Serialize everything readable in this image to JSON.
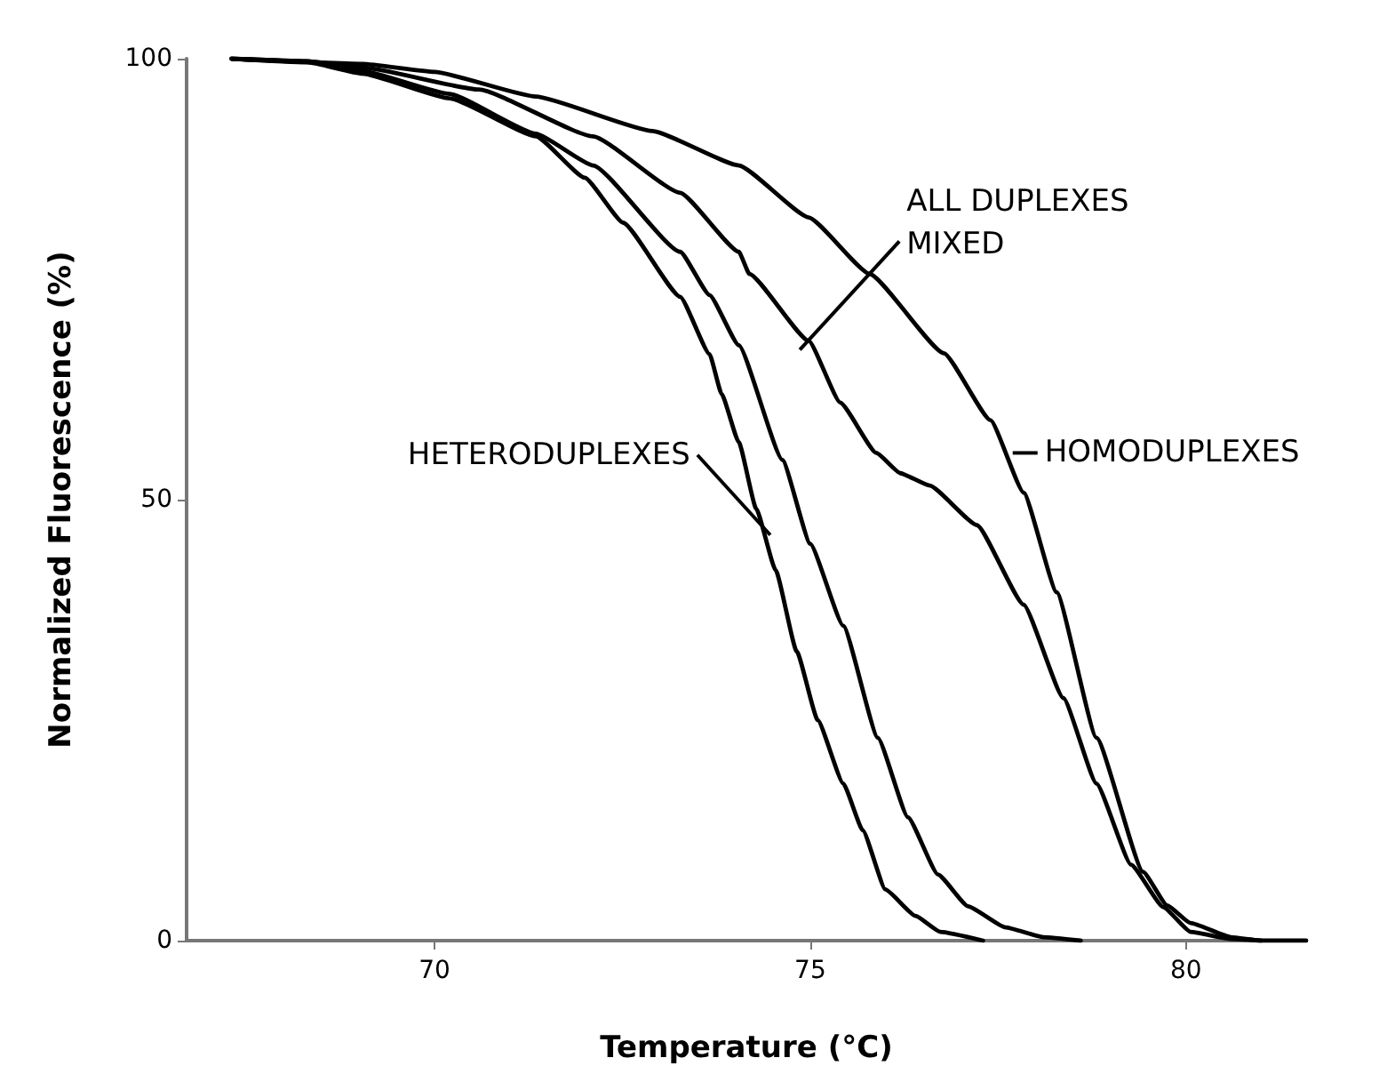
{
  "chart_data": {
    "type": "line",
    "xlabel": "Temperature (°C)",
    "ylabel": "Normalized Fluorescence (%)",
    "xlim": [
      66.7,
      81.6
    ],
    "ylim": [
      0,
      100
    ],
    "xticks": [
      70,
      75,
      80
    ],
    "yticks": [
      0,
      50,
      100
    ],
    "grid": false,
    "marker": "none",
    "line_style": "solid",
    "series": [
      {
        "color": "#000000",
        "x": [
          67.3,
          68.3,
          69.04,
          70.2,
          71.35,
          72.0,
          72.51,
          73.27,
          73.66,
          73.82,
          74.05,
          74.28,
          74.54,
          74.82,
          75.1,
          75.44,
          75.7,
          76.0,
          76.4,
          76.73,
          77.3
        ],
        "values": [
          100,
          99.6,
          98.3,
          95.5,
          91.2,
          86.5,
          81.4,
          73,
          66.5,
          62,
          56.5,
          49,
          42,
          32.8,
          25,
          17.8,
          12.5,
          5.8,
          2.8,
          1,
          0
        ]
      },
      {
        "color": "#000000",
        "x": [
          67.3,
          68.3,
          69.04,
          70.2,
          71.35,
          72.11,
          73.27,
          73.66,
          74.05,
          74.63,
          75.0,
          75.44,
          75.9,
          76.3,
          76.7,
          77.1,
          77.6,
          78.1,
          78.6
        ],
        "values": [
          100,
          99.7,
          98.6,
          96,
          91.5,
          87.9,
          78.1,
          73.2,
          67.5,
          54.5,
          45,
          35.7,
          23,
          14,
          7.5,
          3.9,
          1.5,
          0.4,
          0
        ]
      },
      {
        "color": "#000000",
        "x": [
          67.3,
          68.3,
          69.04,
          70.59,
          72.11,
          73.27,
          74.05,
          74.19,
          74.98,
          75.4,
          75.88,
          76.2,
          76.59,
          77.22,
          77.84,
          78.37,
          78.81,
          79.27,
          79.7,
          80.06,
          80.6,
          81.0
        ],
        "values": [
          100,
          99.7,
          99,
          96.5,
          91.2,
          84.8,
          78.1,
          75.6,
          68,
          61,
          55.3,
          53,
          51.6,
          47.1,
          38.1,
          27.5,
          17.8,
          8.6,
          3.8,
          1,
          0.2,
          0
        ]
      },
      {
        "color": "#000000",
        "x": [
          67.3,
          69.04,
          70.0,
          71.35,
          72.9,
          74.05,
          74.98,
          75.79,
          76.78,
          77.4,
          77.84,
          78.28,
          78.81,
          79.43,
          79.75,
          80.06,
          80.6,
          81.0,
          81.6
        ],
        "values": [
          100,
          99.4,
          98.5,
          95.7,
          91.8,
          87.9,
          82,
          75.6,
          66.6,
          59,
          50.8,
          39.5,
          23,
          7.8,
          4,
          2,
          0.4,
          0,
          0
        ]
      }
    ],
    "annotations": [
      {
        "text": "ALL DUPLEXES\nMIXED",
        "x": 74.98,
        "y": 68
      },
      {
        "text": "HOMODUPLEXES",
        "x": 77.6,
        "y": 55.3
      },
      {
        "text": "HETERODUPLEXES",
        "x": 74.35,
        "y": 47
      }
    ]
  }
}
